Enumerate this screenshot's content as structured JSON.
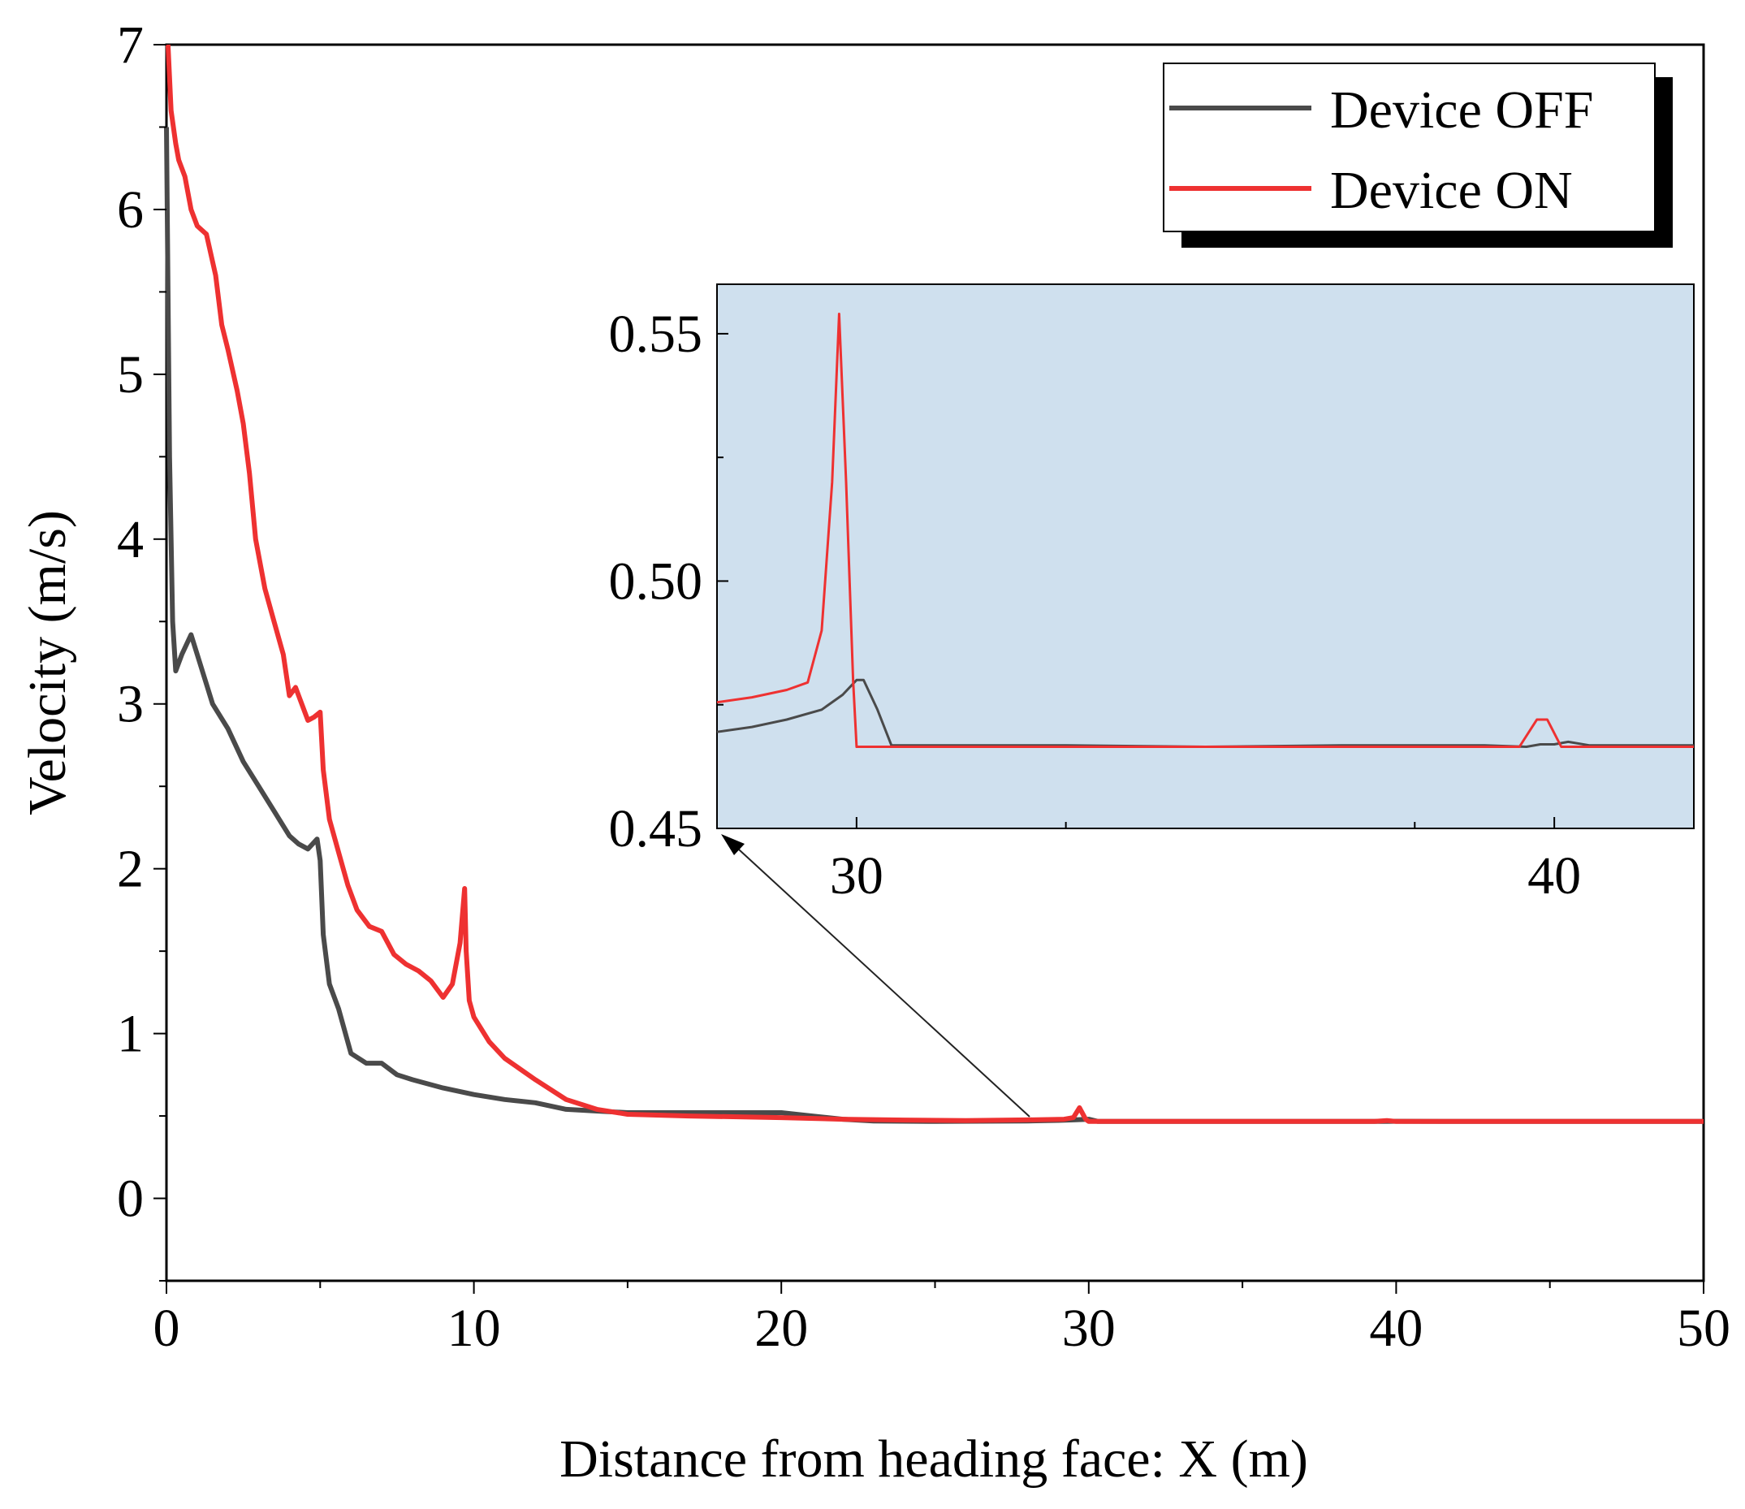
{
  "chart_data": {
    "type": "line",
    "xlabel": "Distance from heading face: X (m)",
    "ylabel": "Velocity (m/s)",
    "xlim": [
      0,
      50
    ],
    "ylim": [
      -0.5,
      7
    ],
    "xticks": [
      0,
      10,
      20,
      30,
      40,
      50
    ],
    "xtick_labels": [
      "0",
      "10",
      "20",
      "30",
      "40",
      "50"
    ],
    "yticks": [
      0,
      1,
      2,
      3,
      4,
      5,
      6,
      7
    ],
    "ytick_labels": [
      "0",
      "1",
      "2",
      "3",
      "4",
      "5",
      "6",
      "7"
    ],
    "legend_position": "top-right",
    "series": [
      {
        "name": "Device OFF",
        "color": "#4a4a4a",
        "x": [
          0.0,
          0.1,
          0.2,
          0.3,
          0.5,
          0.8,
          1.0,
          1.5,
          2.0,
          2.5,
          3.0,
          3.5,
          4.0,
          4.3,
          4.6,
          4.9,
          5.0,
          5.1,
          5.3,
          5.6,
          6.0,
          6.5,
          7.0,
          7.5,
          8.0,
          9.0,
          10.0,
          11.0,
          12.0,
          13.0,
          14.0,
          15.0,
          16.0,
          18.0,
          20.0,
          21.0,
          22.0,
          23.0,
          25.0,
          28.0,
          29.0,
          29.5,
          30.0,
          30.3,
          32.0,
          35.0,
          38.0,
          39.5,
          40.0,
          42.0,
          45.0,
          50.0
        ],
        "y": [
          6.5,
          4.5,
          3.5,
          3.2,
          3.3,
          3.42,
          3.3,
          3.0,
          2.85,
          2.65,
          2.5,
          2.35,
          2.2,
          2.15,
          2.12,
          2.18,
          2.05,
          1.6,
          1.3,
          1.15,
          0.88,
          0.82,
          0.82,
          0.75,
          0.72,
          0.67,
          0.63,
          0.6,
          0.58,
          0.54,
          0.53,
          0.52,
          0.52,
          0.52,
          0.52,
          0.5,
          0.48,
          0.47,
          0.467,
          0.47,
          0.473,
          0.476,
          0.48,
          0.467,
          0.467,
          0.467,
          0.467,
          0.467,
          0.468,
          0.467,
          0.467,
          0.467
        ]
      },
      {
        "name": "Device ON",
        "color": "#ee3131",
        "x": [
          0.05,
          0.15,
          0.3,
          0.4,
          0.6,
          0.8,
          1.0,
          1.3,
          1.6,
          1.8,
          2.0,
          2.3,
          2.5,
          2.6,
          2.7,
          2.9,
          3.2,
          3.5,
          3.8,
          4.0,
          4.2,
          4.4,
          4.6,
          4.8,
          5.0,
          5.1,
          5.3,
          5.6,
          5.9,
          6.2,
          6.6,
          7.0,
          7.4,
          7.8,
          8.2,
          8.6,
          9.0,
          9.3,
          9.55,
          9.7,
          9.75,
          9.85,
          10.0,
          10.5,
          11.0,
          12.0,
          13.0,
          14.0,
          15.0,
          17.0,
          20.0,
          22.0,
          24.0,
          26.0,
          28.0,
          29.2,
          29.5,
          29.7,
          29.9,
          30.0,
          32.0,
          35.0,
          38.0,
          39.3,
          39.5,
          39.7,
          40.0,
          42.0,
          45.0,
          50.0
        ],
        "y": [
          7.0,
          6.6,
          6.4,
          6.3,
          6.2,
          6.0,
          5.9,
          5.85,
          5.6,
          5.3,
          5.15,
          4.9,
          4.7,
          4.55,
          4.4,
          4.0,
          3.7,
          3.5,
          3.3,
          3.05,
          3.1,
          3.0,
          2.9,
          2.92,
          2.95,
          2.6,
          2.3,
          2.1,
          1.9,
          1.75,
          1.65,
          1.62,
          1.48,
          1.42,
          1.38,
          1.32,
          1.22,
          1.3,
          1.55,
          1.88,
          1.5,
          1.2,
          1.1,
          0.95,
          0.85,
          0.72,
          0.6,
          0.54,
          0.51,
          0.5,
          0.49,
          0.48,
          0.475,
          0.472,
          0.476,
          0.48,
          0.49,
          0.55,
          0.48,
          0.467,
          0.467,
          0.467,
          0.467,
          0.467,
          0.47,
          0.472,
          0.467,
          0.467,
          0.467,
          0.467
        ]
      }
    ],
    "inset": {
      "xlim": [
        28,
        42
      ],
      "ylim": [
        0.45,
        0.56
      ],
      "xticks": [
        30,
        40
      ],
      "xtick_labels": [
        "30",
        "40"
      ],
      "yticks": [
        0.45,
        0.5,
        0.55
      ],
      "ytick_labels": [
        "0.45",
        "0.50",
        "0.55"
      ],
      "background": "#cfe0ee",
      "series": [
        {
          "name": "Device OFF",
          "color": "#4a4a4a",
          "x": [
            28.0,
            28.5,
            29.0,
            29.5,
            29.8,
            30.0,
            30.1,
            30.3,
            30.5,
            31.0,
            33.0,
            35.0,
            37.0,
            39.0,
            39.6,
            39.8,
            40.0,
            40.2,
            40.5,
            42.0
          ],
          "y": [
            0.4695,
            0.4705,
            0.472,
            0.474,
            0.477,
            0.48,
            0.48,
            0.474,
            0.4668,
            0.4668,
            0.4668,
            0.4665,
            0.4668,
            0.4668,
            0.4665,
            0.467,
            0.467,
            0.4675,
            0.4668,
            0.4668
          ]
        },
        {
          "name": "Device ON",
          "color": "#ee3131",
          "x": [
            28.0,
            28.5,
            29.0,
            29.3,
            29.5,
            29.65,
            29.75,
            29.85,
            29.95,
            30.0,
            30.5,
            32.0,
            35.0,
            38.0,
            39.5,
            39.75,
            39.9,
            40.1,
            40.3,
            40.5,
            42.0
          ],
          "y": [
            0.4755,
            0.4765,
            0.478,
            0.4795,
            0.49,
            0.52,
            0.554,
            0.52,
            0.48,
            0.4665,
            0.4665,
            0.4665,
            0.4665,
            0.4665,
            0.4665,
            0.472,
            0.472,
            0.4665,
            0.4665,
            0.4665,
            0.4665
          ]
        }
      ]
    }
  }
}
